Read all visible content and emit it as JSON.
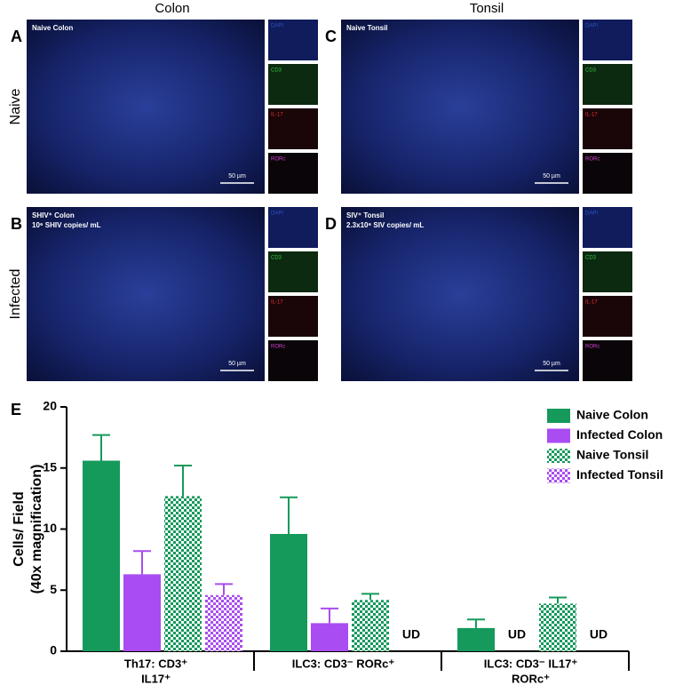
{
  "columns": [
    "Colon",
    "Tonsil"
  ],
  "rows": [
    "Naive",
    "Infected"
  ],
  "panels": [
    {
      "letter": "A",
      "title": "Naive Colon",
      "scale": "50 µm",
      "channels": [
        "DAPI",
        "CD3",
        "IL-17",
        "RORc"
      ]
    },
    {
      "letter": "C",
      "title": "Naive Tonsil",
      "scale": "50 µm",
      "channels": [
        "DAPI",
        "CD3",
        "IL-17",
        "RORc"
      ]
    },
    {
      "letter": "B",
      "title": "SHIV⁺ Colon",
      "subtitle": "10⁶ SHIV copies/ mL",
      "scale": "50 µm",
      "channels": [
        "DAPI",
        "CD3",
        "IL-17",
        "RORc"
      ]
    },
    {
      "letter": "D",
      "title": "SIV⁺ Tonsil",
      "subtitle": "2.3x10⁶ SIV copies/ mL",
      "scale": "50 µm",
      "channels": [
        "DAPI",
        "CD3",
        "IL-17",
        "RORc"
      ]
    }
  ],
  "chart_label": "E",
  "chart_data": {
    "type": "bar",
    "ylabel": [
      "Cells/ Field",
      "(40x magnification)"
    ],
    "categories": [
      [
        "Th17: CD3⁺",
        "IL17⁺"
      ],
      [
        "ILC3: CD3⁻ RORc⁺"
      ],
      [
        "ILC3: CD3⁻ IL17⁺",
        "RORc⁺"
      ]
    ],
    "series": [
      {
        "name": "Naive Colon",
        "color": "#159a5b",
        "pattern": "solid",
        "values": [
          15.6,
          9.6,
          1.9
        ],
        "errors": [
          2.1,
          3.0,
          0.7
        ]
      },
      {
        "name": "Infected Colon",
        "color": "#a94cf2",
        "pattern": "solid",
        "values": [
          6.3,
          2.3,
          null
        ],
        "errors": [
          1.9,
          1.2,
          null
        ],
        "value_labels": [
          null,
          null,
          "UD"
        ]
      },
      {
        "name": "Naive Tonsil",
        "color": "#159a5b",
        "pattern": "checker",
        "values": [
          12.7,
          4.2,
          3.9
        ],
        "errors": [
          2.5,
          0.5,
          0.5
        ]
      },
      {
        "name": "Infected Tonsil",
        "color": "#a94cf2",
        "pattern": "checker",
        "values": [
          4.6,
          null,
          null
        ],
        "errors": [
          0.9,
          null,
          null
        ],
        "value_labels": [
          null,
          "UD",
          "UD"
        ]
      }
    ],
    "ylim": [
      0,
      20
    ],
    "yticks": [
      0,
      5,
      10,
      15,
      20
    ],
    "legend": "top-right"
  }
}
